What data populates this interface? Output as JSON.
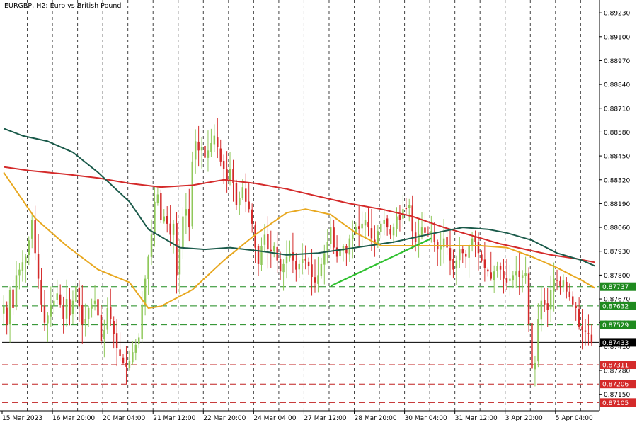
{
  "chart_data": {
    "type": "candlestick",
    "title": "EURGBP, H2:  Euro vs British Pound",
    "ylim": [
      0.8706,
      0.893
    ],
    "y_ticks": [
      0.8923,
      0.891,
      0.8897,
      0.8884,
      0.8871,
      0.8858,
      0.8845,
      0.8832,
      0.8819,
      0.8806,
      0.8793,
      0.878,
      0.8767,
      0.8754,
      0.8741,
      0.8728,
      0.8715
    ],
    "y_tick_labels": [
      "0.89230",
      "0.89100",
      "0.88970",
      "0.88840",
      "0.88710",
      "0.88580",
      "0.88450",
      "0.88320",
      "0.88190",
      "0.88060",
      "0.87930",
      "0.87800",
      "0.87670",
      "0.87540",
      "0.87410",
      "0.87280",
      "0.87150"
    ],
    "x_labels": [
      "15 Mar 2023",
      "16 Mar 20:00",
      "20 Mar 04:00",
      "21 Mar 12:00",
      "22 Mar 20:00",
      "24 Mar 04:00",
      "27 Mar 12:00",
      "28 Mar 20:00",
      "30 Mar 04:00",
      "31 Mar 12:00",
      "3 Apr 20:00",
      "5 Apr 04:00"
    ],
    "x_label_index": [
      0,
      16,
      32,
      48,
      64,
      80,
      96,
      112,
      128,
      144,
      160,
      176
    ],
    "candle_count": 190,
    "bull_color": "#8fc85a",
    "bear_color": "#d42a2a",
    "closes": [
      0.8763,
      0.8753,
      0.8772,
      0.8762,
      0.878,
      0.8783,
      0.8787,
      0.879,
      0.8799,
      0.881,
      0.8792,
      0.8778,
      0.8764,
      0.8754,
      0.8758,
      0.8764,
      0.8766,
      0.877,
      0.8764,
      0.8756,
      0.8767,
      0.8758,
      0.8766,
      0.8774,
      0.8763,
      0.8753,
      0.8756,
      0.8762,
      0.8764,
      0.8766,
      0.8758,
      0.8744,
      0.875,
      0.8762,
      0.8756,
      0.8748,
      0.874,
      0.8736,
      0.8732,
      0.873,
      0.8733,
      0.8738,
      0.8742,
      0.8746,
      0.8764,
      0.8778,
      0.879,
      0.8802,
      0.882,
      0.8824,
      0.881,
      0.8812,
      0.8808,
      0.8802,
      0.8808,
      0.878,
      0.8794,
      0.8812,
      0.8816,
      0.8806,
      0.8842,
      0.8853,
      0.8848,
      0.885,
      0.8844,
      0.8848,
      0.8852,
      0.8856,
      0.885,
      0.8842,
      0.8838,
      0.8832,
      0.8838,
      0.883,
      0.8818,
      0.8822,
      0.8828,
      0.882,
      0.8816,
      0.8808,
      0.8795,
      0.8786,
      0.8796,
      0.8802,
      0.8794,
      0.8793,
      0.8796,
      0.8788,
      0.8782,
      0.8786,
      0.879,
      0.8792,
      0.8788,
      0.8783,
      0.8786,
      0.8789,
      0.8788,
      0.8785,
      0.8779,
      0.8776,
      0.878,
      0.8786,
      0.8792,
      0.8798,
      0.8806,
      0.8795,
      0.879,
      0.8794,
      0.8796,
      0.8792,
      0.88,
      0.8802,
      0.8806,
      0.8805,
      0.8808,
      0.881,
      0.8806,
      0.88,
      0.8798,
      0.8804,
      0.8808,
      0.881,
      0.8806,
      0.8802,
      0.8806,
      0.8812,
      0.881,
      0.8816,
      0.8816,
      0.8818,
      0.8804,
      0.8798,
      0.8802,
      0.8806,
      0.8803,
      0.8802,
      0.8804,
      0.8798,
      0.8794,
      0.8796,
      0.88,
      0.8795,
      0.8788,
      0.8783,
      0.8788,
      0.8794,
      0.8792,
      0.879,
      0.8796,
      0.88,
      0.8798,
      0.8792,
      0.8788,
      0.8784,
      0.8782,
      0.8778,
      0.8782,
      0.8785,
      0.8783,
      0.8778,
      0.8776,
      0.8778,
      0.878,
      0.8782,
      0.8779,
      0.878,
      0.8781,
      0.8753,
      0.8729,
      0.8732,
      0.8756,
      0.8766,
      0.8764,
      0.8761,
      0.8772,
      0.8778,
      0.8777,
      0.8774,
      0.8777,
      0.8771,
      0.8768,
      0.8764,
      0.8762,
      0.8752,
      0.875,
      0.8749,
      0.8748,
      0.8743
    ],
    "indicators": {
      "ma_fast": {
        "color": "#e8a820",
        "points": [
          [
            0,
            0.8836
          ],
          [
            10,
            0.8811
          ],
          [
            20,
            0.8796
          ],
          [
            30,
            0.8783
          ],
          [
            40,
            0.8776
          ],
          [
            46,
            0.8762
          ],
          [
            50,
            0.8763
          ],
          [
            60,
            0.8772
          ],
          [
            70,
            0.8788
          ],
          [
            80,
            0.8802
          ],
          [
            90,
            0.8814
          ],
          [
            96,
            0.8816
          ],
          [
            104,
            0.8813
          ],
          [
            112,
            0.8803
          ],
          [
            120,
            0.8796
          ],
          [
            128,
            0.8796
          ],
          [
            136,
            0.8796
          ],
          [
            146,
            0.8796
          ],
          [
            152,
            0.8796
          ],
          [
            160,
            0.8795
          ],
          [
            168,
            0.879
          ],
          [
            176,
            0.8784
          ],
          [
            184,
            0.8777
          ],
          [
            188,
            0.8773
          ]
        ]
      },
      "ma_mid": {
        "color": "#1a5a4a",
        "points": [
          [
            0,
            0.886
          ],
          [
            6,
            0.8856
          ],
          [
            14,
            0.8853
          ],
          [
            22,
            0.8847
          ],
          [
            30,
            0.8836
          ],
          [
            40,
            0.882
          ],
          [
            46,
            0.8805
          ],
          [
            56,
            0.8795
          ],
          [
            64,
            0.8794
          ],
          [
            72,
            0.8795
          ],
          [
            82,
            0.8793
          ],
          [
            90,
            0.8791
          ],
          [
            100,
            0.8792
          ],
          [
            108,
            0.8794
          ],
          [
            116,
            0.8796
          ],
          [
            124,
            0.8798
          ],
          [
            132,
            0.8801
          ],
          [
            140,
            0.8804
          ],
          [
            146,
            0.8806
          ],
          [
            154,
            0.8805
          ],
          [
            160,
            0.8803
          ],
          [
            168,
            0.8799
          ],
          [
            176,
            0.8792
          ],
          [
            184,
            0.8788
          ],
          [
            188,
            0.8785
          ]
        ]
      },
      "ma_slow": {
        "color": "#d42a2a",
        "points": [
          [
            0,
            0.8839
          ],
          [
            8,
            0.8837
          ],
          [
            20,
            0.8835
          ],
          [
            30,
            0.8833
          ],
          [
            40,
            0.883
          ],
          [
            50,
            0.8828
          ],
          [
            60,
            0.8829
          ],
          [
            70,
            0.8832
          ],
          [
            80,
            0.883
          ],
          [
            90,
            0.8827
          ],
          [
            100,
            0.8823
          ],
          [
            110,
            0.8819
          ],
          [
            120,
            0.8816
          ],
          [
            130,
            0.8812
          ],
          [
            140,
            0.8806
          ],
          [
            150,
            0.8801
          ],
          [
            158,
            0.8797
          ],
          [
            166,
            0.8794
          ],
          [
            174,
            0.8791
          ],
          [
            182,
            0.8789
          ],
          [
            188,
            0.8787
          ]
        ]
      },
      "trendline": {
        "color": "#2fc12f",
        "from": [
          104,
          0.8774
        ],
        "to": [
          136,
          0.88
        ]
      }
    },
    "horizontal_levels": [
      {
        "price": 0.87737,
        "label": "0.87737",
        "style": "dashed",
        "color": "#1f8a1f",
        "label_bg": "#1f8a1f",
        "label_color": "#ffffff"
      },
      {
        "price": 0.87632,
        "label": "0.87632",
        "style": "dashed",
        "color": "#1f8a1f",
        "label_bg": "#1f8a1f",
        "label_color": "#ffffff"
      },
      {
        "price": 0.87529,
        "label": "0.87529",
        "style": "dashed",
        "color": "#1f8a1f",
        "label_bg": "#1f8a1f",
        "label_color": "#ffffff"
      },
      {
        "price": 0.87433,
        "label": "0.87433",
        "style": "solid",
        "color": "#000000",
        "label_bg": "#000000",
        "label_color": "#ffffff"
      },
      {
        "price": 0.87311,
        "label": "0.87311",
        "style": "dashed",
        "color": "#c02020",
        "label_bg": "#d42a2a",
        "label_color": "#ffffff"
      },
      {
        "price": 0.87206,
        "label": "0.87206",
        "style": "dashed",
        "color": "#c02020",
        "label_bg": "#d42a2a",
        "label_color": "#ffffff"
      },
      {
        "price": 0.87105,
        "label": "0.87105",
        "style": "dashed",
        "color": "#c02020",
        "label_bg": "#d42a2a",
        "label_color": "#ffffff"
      }
    ],
    "grid": "vertical-dashed"
  }
}
